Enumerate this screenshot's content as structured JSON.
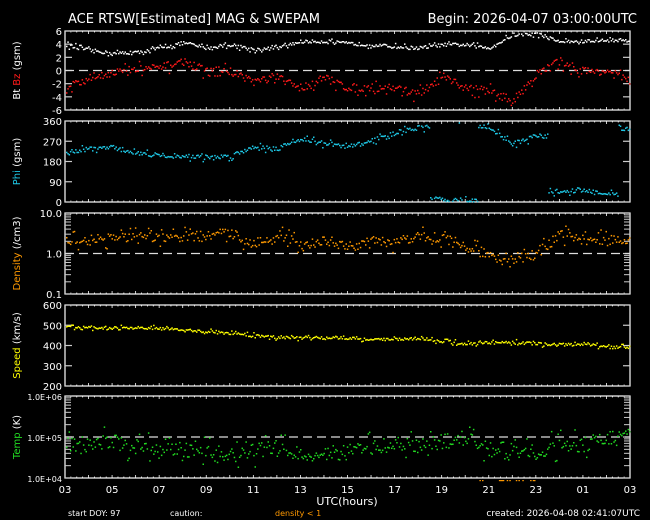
{
  "title": "ACE RTSW[Estimated] MAG & SWEPAM",
  "begin": "Begin: 2026-04-07 03:00:00UTC",
  "xlabel": "UTC(hours)",
  "x_tick_labels": [
    "03",
    "05",
    "07",
    "09",
    "11",
    "13",
    "15",
    "17",
    "19",
    "21",
    "23",
    "01",
    "03"
  ],
  "footer": {
    "start_doy": "start DOY:  97",
    "caution": "caution:",
    "density_note": "density < 1",
    "created": "created: 2026-04-08 02:41:07UTC"
  },
  "colors": {
    "background": "#000000",
    "axes": "#ffffff",
    "bt": "#ffffff",
    "bz": "#ff1a1a",
    "phi": "#1ec8e6",
    "density": "#ff9900",
    "speed": "#ffff00",
    "temp": "#22dd22"
  },
  "chart_data": [
    {
      "type": "scatter",
      "ylabel_parts": [
        "Bt",
        "Bz",
        "(gsm)"
      ],
      "ylim": [
        -6,
        6
      ],
      "y_tick_labels": [
        "6",
        "4",
        "2",
        "0",
        "-2",
        "-4",
        "-6"
      ],
      "reference_line": 0,
      "x": [
        "03",
        "04",
        "05",
        "06",
        "07",
        "08",
        "09",
        "10",
        "11",
        "12",
        "13",
        "14",
        "15",
        "16",
        "17",
        "18",
        "19",
        "20",
        "21",
        "22",
        "23",
        "00",
        "01",
        "02",
        "03"
      ],
      "series": [
        {
          "name": "Bt",
          "values": [
            4,
            3.2,
            2.7,
            2.8,
            3.5,
            4.3,
            3.5,
            4,
            3.3,
            3.5,
            4.5,
            4.5,
            4.2,
            4,
            3.7,
            3.5,
            4,
            4,
            3.5,
            5.5,
            5.7,
            4.5,
            4.5,
            4.7,
            4.7
          ]
        },
        {
          "name": "Bz",
          "values": [
            -2.5,
            -1,
            -0.2,
            0.3,
            0.5,
            1.5,
            0,
            0,
            -1.5,
            -1,
            -2.5,
            -1,
            -2.5,
            -2.5,
            -2.5,
            -3.5,
            -1,
            -2.5,
            -3,
            -4.5,
            -0.5,
            1.5,
            0,
            0,
            -1.5
          ]
        }
      ]
    },
    {
      "type": "scatter",
      "ylabel_parts": [
        "Phi",
        "(gsm)"
      ],
      "ylim": [
        0,
        360
      ],
      "y_tick_labels": [
        "360",
        "270",
        "180",
        "90",
        "0"
      ],
      "x": [
        "03",
        "04",
        "05",
        "06",
        "07",
        "08",
        "09",
        "10",
        "11",
        "12",
        "13",
        "14",
        "15",
        "16",
        "17",
        "18",
        "19",
        "20",
        "21",
        "22",
        "23",
        "00",
        "01",
        "02",
        "03"
      ],
      "series": [
        {
          "name": "Phi",
          "values": [
            215,
            240,
            245,
            222,
            210,
            207,
            202,
            207,
            250,
            240,
            285,
            262,
            248,
            275,
            310,
            335,
            15,
            10,
            335,
            260,
            297,
            50,
            55,
            35,
            330
          ]
        }
      ]
    },
    {
      "type": "scatter",
      "ylabel_parts": [
        "Density",
        "(/cm3)"
      ],
      "ylim": [
        0.1,
        10
      ],
      "yscale": "log",
      "y_tick_labels": [
        "10.0",
        "1.0",
        "0.1"
      ],
      "reference_line": 1,
      "x": [
        "03",
        "04",
        "05",
        "06",
        "07",
        "08",
        "09",
        "10",
        "11",
        "12",
        "13",
        "14",
        "15",
        "16",
        "17",
        "18",
        "19",
        "20",
        "21",
        "22",
        "23",
        "00",
        "01",
        "02",
        "03"
      ],
      "series": [
        {
          "name": "Density",
          "values": [
            2.3,
            2.1,
            2.6,
            2.6,
            2.5,
            2.6,
            2.9,
            3.4,
            1.8,
            3.2,
            1.5,
            2.3,
            1.5,
            2.1,
            1.9,
            2.9,
            2.6,
            1.6,
            0.9,
            0.7,
            1.0,
            3.1,
            2.3,
            2.3,
            2.1
          ]
        }
      ]
    },
    {
      "type": "scatter",
      "ylabel_parts": [
        "Speed",
        "(km/s)"
      ],
      "ylim": [
        200,
        600
      ],
      "y_tick_labels": [
        "600",
        "500",
        "400",
        "300",
        "200"
      ],
      "x": [
        "03",
        "04",
        "05",
        "06",
        "07",
        "08",
        "09",
        "10",
        "11",
        "12",
        "13",
        "14",
        "15",
        "16",
        "17",
        "18",
        "19",
        "20",
        "21",
        "22",
        "23",
        "00",
        "01",
        "02",
        "03"
      ],
      "series": [
        {
          "name": "Speed",
          "values": [
            495,
            490,
            487,
            490,
            487,
            478,
            473,
            462,
            453,
            445,
            442,
            440,
            442,
            433,
            433,
            440,
            423,
            412,
            417,
            420,
            412,
            407,
            412,
            395,
            395
          ]
        }
      ]
    },
    {
      "type": "scatter",
      "ylabel_parts": [
        "Temp",
        "(K)"
      ],
      "ylim": [
        10000,
        1000000
      ],
      "yscale": "log",
      "y_tick_labels": [
        "1.0E+06",
        "1.0E+05",
        "1.0E+04"
      ],
      "reference_line": 100000,
      "x": [
        "03",
        "04",
        "05",
        "06",
        "07",
        "08",
        "09",
        "10",
        "11",
        "12",
        "13",
        "14",
        "15",
        "16",
        "17",
        "18",
        "19",
        "20",
        "21",
        "22",
        "23",
        "00",
        "01",
        "02",
        "03"
      ],
      "series": [
        {
          "name": "Temp",
          "values": [
            68000,
            75000,
            80000,
            60000,
            56000,
            50000,
            46000,
            38000,
            46000,
            60000,
            38000,
            42000,
            46000,
            60000,
            68000,
            60000,
            80000,
            100000,
            50000,
            42000,
            46000,
            68000,
            68000,
            100000,
            120000
          ]
        }
      ]
    }
  ]
}
